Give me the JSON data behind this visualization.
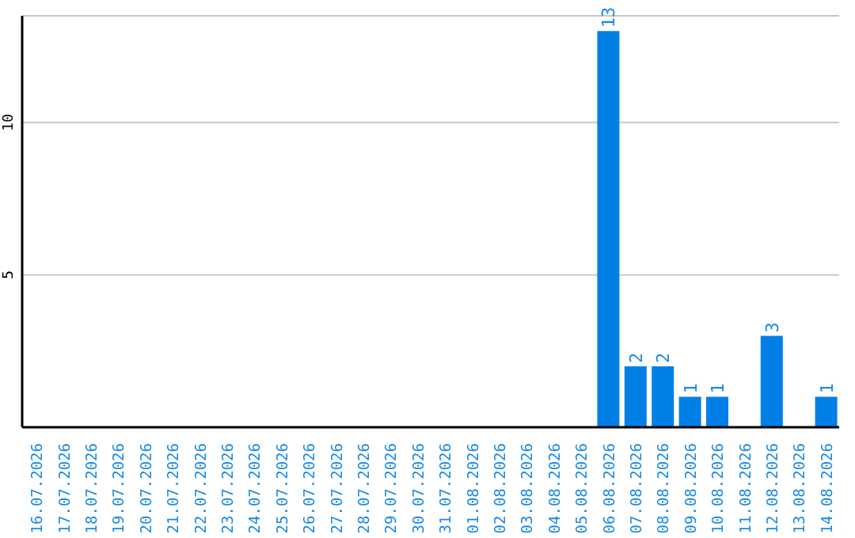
{
  "chart_data": {
    "type": "bar",
    "categories": [
      "16.07.2026",
      "17.07.2026",
      "18.07.2026",
      "19.07.2026",
      "20.07.2026",
      "21.07.2026",
      "22.07.2026",
      "23.07.2026",
      "24.07.2026",
      "25.07.2026",
      "26.07.2026",
      "27.07.2026",
      "28.07.2026",
      "29.07.2026",
      "30.07.2026",
      "31.07.2026",
      "01.08.2026",
      "02.08.2026",
      "03.08.2026",
      "04.08.2026",
      "05.08.2026",
      "06.08.2026",
      "07.08.2026",
      "08.08.2026",
      "09.08.2026",
      "10.08.2026",
      "11.08.2026",
      "12.08.2026",
      "13.08.2026",
      "14.08.2026"
    ],
    "values": [
      0,
      0,
      0,
      0,
      0,
      0,
      0,
      0,
      0,
      0,
      0,
      0,
      0,
      0,
      0,
      0,
      0,
      0,
      0,
      0,
      0,
      13,
      2,
      2,
      1,
      1,
      0,
      3,
      0,
      1
    ],
    "value_labels": [
      null,
      null,
      null,
      null,
      null,
      null,
      null,
      null,
      null,
      null,
      null,
      null,
      null,
      null,
      null,
      null,
      null,
      null,
      null,
      null,
      null,
      "13",
      "2",
      "2",
      "1",
      "1",
      null,
      "3",
      null,
      "1"
    ],
    "color": "#0080e6",
    "ylim": [
      0,
      13.5
    ],
    "yticks": [
      5,
      10
    ],
    "grid": "y"
  }
}
